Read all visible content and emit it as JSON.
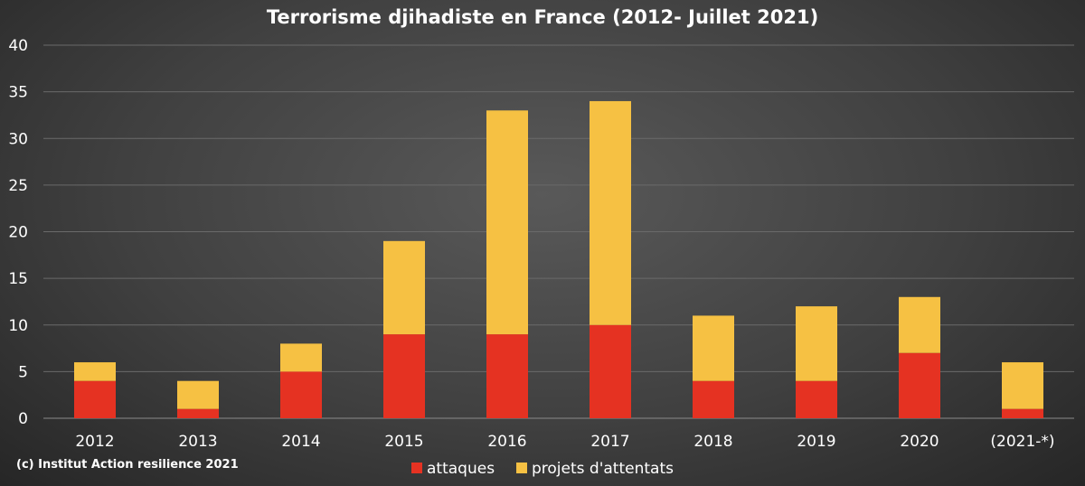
{
  "chart_data": {
    "type": "bar",
    "stacked": true,
    "title": "Terrorisme djihadiste en France (2012- Juillet 2021)",
    "xlabel": "",
    "ylabel": "",
    "categories": [
      "2012",
      "2013",
      "2014",
      "2015",
      "2016",
      "2017",
      "2018",
      "2019",
      "2020",
      "(2021-*)"
    ],
    "series": [
      {
        "name": "attaques",
        "color": "#e53222",
        "values": [
          4,
          1,
          5,
          9,
          9,
          10,
          4,
          4,
          7,
          1
        ]
      },
      {
        "name": "projets d'attentats",
        "color": "#f6c143",
        "values": [
          2,
          3,
          3,
          10,
          24,
          24,
          7,
          8,
          6,
          5
        ]
      }
    ],
    "ylim": [
      0,
      40
    ],
    "yticks": [
      0,
      5,
      10,
      15,
      20,
      25,
      30,
      35,
      40
    ],
    "grid": true,
    "legend_position": "bottom-center",
    "credit": "(c) Institut Action resilience 2021"
  }
}
